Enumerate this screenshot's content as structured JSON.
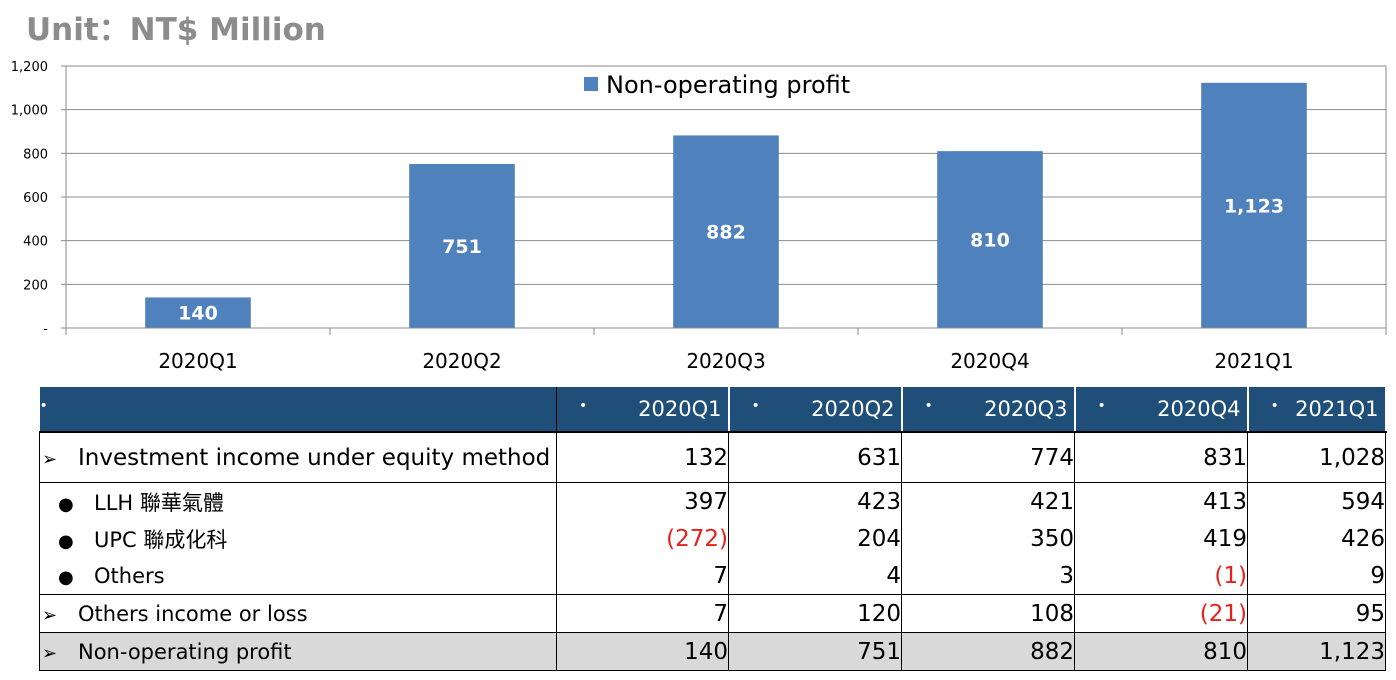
{
  "unit_label": "Unit：NT$ Million",
  "chart_data": {
    "type": "bar",
    "categories": [
      "2020Q1",
      "2020Q2",
      "2020Q3",
      "2020Q4",
      "2021Q1"
    ],
    "series": [
      {
        "name": "Non-operating profit",
        "values": [
          140,
          751,
          882,
          810,
          1123
        ],
        "color": "#4f81bd"
      }
    ],
    "data_labels": [
      "140",
      "751",
      "882",
      "810",
      "1,123"
    ],
    "y_ticks": [
      {
        "value": 0,
        "label": "-"
      },
      {
        "value": 200,
        "label": "200"
      },
      {
        "value": 400,
        "label": "400"
      },
      {
        "value": 600,
        "label": "600"
      },
      {
        "value": 800,
        "label": "800"
      },
      {
        "value": 1000,
        "label": "1,000"
      },
      {
        "value": 1200,
        "label": "1,200"
      }
    ],
    "ylim": [
      0,
      1200
    ],
    "grid": true,
    "legend_position": "top-center"
  },
  "table": {
    "header_bullet": "•",
    "columns": [
      "2020Q1",
      "2020Q2",
      "2020Q3",
      "2020Q4",
      "2021Q1"
    ],
    "rows": [
      {
        "marker": "➢",
        "label": "Investment income under equity method",
        "values": [
          "132",
          "631",
          "774",
          "831",
          "1,028"
        ],
        "negative": [
          false,
          false,
          false,
          false,
          false
        ]
      },
      {
        "marker": "●",
        "label": "LLH 聯華氣體",
        "values": [
          "397",
          "423",
          "421",
          "413",
          "594"
        ],
        "negative": [
          false,
          false,
          false,
          false,
          false
        ]
      },
      {
        "marker": "●",
        "label": "UPC 聯成化科",
        "values": [
          "(272)",
          "204",
          "350",
          "419",
          "426"
        ],
        "negative": [
          true,
          false,
          false,
          false,
          false
        ]
      },
      {
        "marker": "●",
        "label": "Others",
        "values": [
          "7",
          "4",
          "3",
          "(1)",
          "9"
        ],
        "negative": [
          false,
          false,
          false,
          true,
          false
        ]
      },
      {
        "marker": "➢",
        "label": "Others income or loss",
        "values": [
          "7",
          "120",
          "108",
          "(21)",
          "95"
        ],
        "negative": [
          false,
          false,
          false,
          true,
          false
        ]
      },
      {
        "marker": "➢",
        "label": "Non-operating profit",
        "values": [
          "140",
          "751",
          "882",
          "810",
          "1,123"
        ],
        "negative": [
          false,
          false,
          false,
          false,
          false
        ]
      }
    ]
  }
}
